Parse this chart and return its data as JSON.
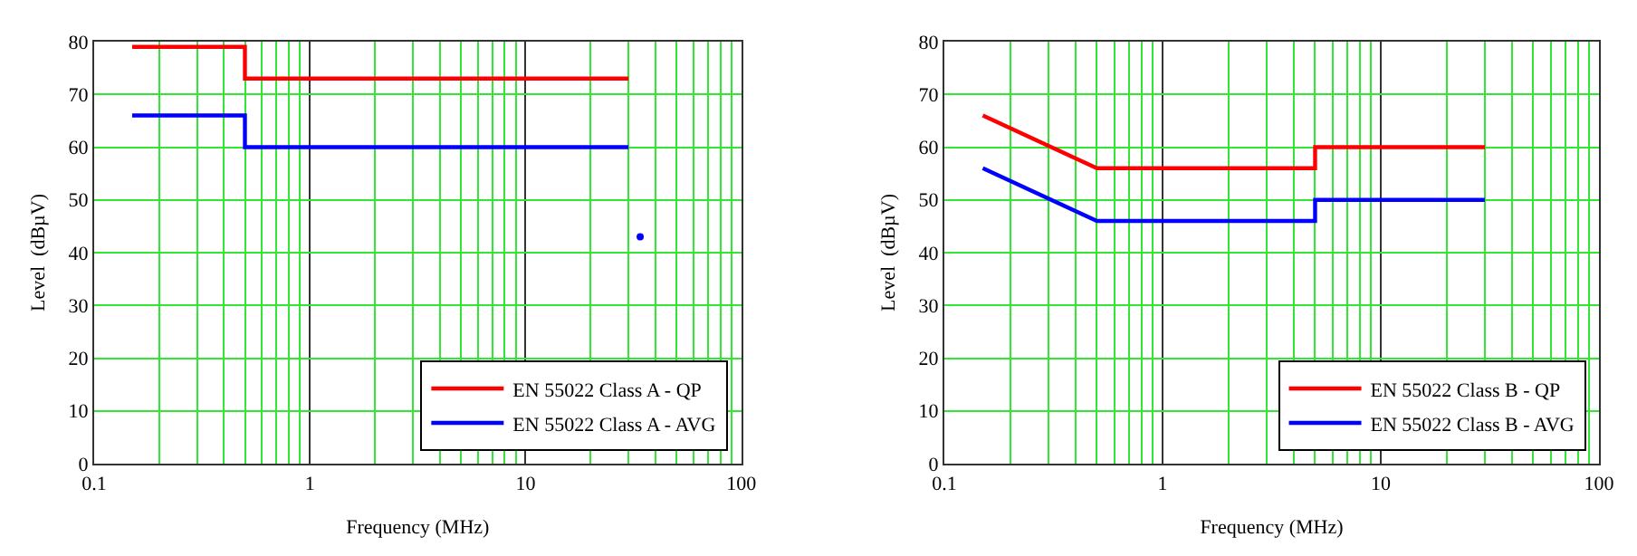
{
  "chart_data": [
    {
      "type": "step",
      "xlabel": "Frequency (MHz)",
      "ylabel": "Level  (dBµV)",
      "log": "x",
      "xlim": [
        0.1,
        100
      ],
      "xticks": [
        0.1,
        1,
        10,
        100
      ],
      "ylim": [
        0,
        80
      ],
      "yticks": [
        0,
        10,
        20,
        30,
        40,
        50,
        60,
        70,
        80
      ],
      "grid": true,
      "legend": "bottom right",
      "line_style": "solid",
      "marker": "none",
      "series": [
        {
          "name": "EN 55022 Class A - QP",
          "color": "#ff0000",
          "x": [
            0.15,
            0.5,
            30
          ],
          "values": [
            79,
            73,
            73
          ]
        },
        {
          "name": "EN 55022 Class A - AVG",
          "color": "#0000ff",
          "x": [
            0.15,
            0.5,
            30
          ],
          "values": [
            66,
            60,
            60
          ]
        },
        {
          "color": "#0000ff",
          "type": "scatter",
          "marker": "circle",
          "x": [
            34
          ],
          "values": [
            43
          ]
        }
      ]
    },
    {
      "type": "line",
      "xlabel": "Frequency (MHz)",
      "ylabel": "Level  (dBµV)",
      "log": "x",
      "xlim": [
        0.1,
        100
      ],
      "xticks": [
        0.1,
        1,
        10,
        100
      ],
      "ylim": [
        0,
        80
      ],
      "yticks": [
        0,
        10,
        20,
        30,
        40,
        50,
        60,
        70,
        80
      ],
      "grid": true,
      "legend": "bottom right",
      "line_style": "solid",
      "marker": "none",
      "series": [
        {
          "name": "EN 55022 Class B - QP",
          "color": "#ff0000",
          "x": [
            0.15,
            0.5,
            5,
            5,
            30
          ],
          "values": [
            66,
            56,
            56,
            60,
            60
          ]
        },
        {
          "name": "EN 55022 Class B - AVG",
          "color": "#0000ff",
          "x": [
            0.15,
            0.5,
            5,
            5,
            30
          ],
          "values": [
            56,
            46,
            46,
            50,
            50
          ]
        }
      ]
    }
  ]
}
